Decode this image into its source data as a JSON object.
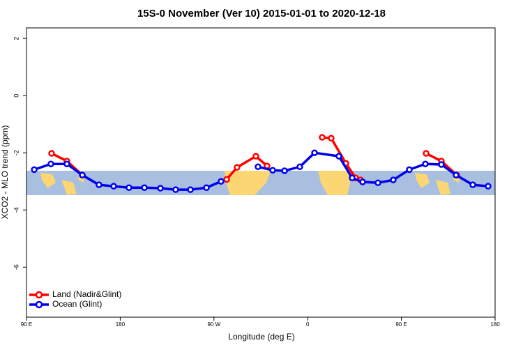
{
  "chart_data": {
    "type": "line",
    "title": "15S-0 November (Ver 10)   2015-01-01 to 2020-12-18",
    "x_label": "Longitude (deg E)",
    "y_label": "XCO2 - MLO trend (ppm)",
    "xlim": [
      90,
      540
    ],
    "xticks": [
      {
        "value": 90,
        "label": "90 E"
      },
      180,
      {
        "value": 270,
        "label": "90 W"
      },
      {
        "value": 360,
        "label": "0"
      },
      {
        "value": 450,
        "label": "90 E"
      },
      {
        "value": 540,
        "label": "180"
      }
    ],
    "ylim": [
      -7.75,
      2.37
    ],
    "yticks": [
      2,
      0,
      -2,
      -4,
      -6
    ],
    "legend": "bottom-left",
    "series": [
      {
        "name": "Land (Nadir&Glint)",
        "color": "#ff0000",
        "x": [
          114.1,
          128.8,
          143.6,
          213,
          282.2,
          292.2,
          310.3,
          321.0,
          347.5,
          373.9,
          382.6,
          396.7,
          406.1,
          410.8,
          442,
          473.7,
          488.4,
          503.2
        ],
        "values": [
          -2.02,
          -2.29,
          -2.78,
          null,
          -2.93,
          -2.51,
          -2.12,
          -2.46,
          null,
          -1.46,
          -1.49,
          -2.37,
          -2.88,
          -2.95,
          null,
          -2.02,
          -2.29,
          -2.78
        ]
      },
      {
        "name": "Ocean (Glint)",
        "color": "#0000ee",
        "x": [
          97.4,
          113.4,
          128.8,
          143.6,
          159.6,
          173.7,
          188.4,
          203.2,
          218.6,
          233.3,
          247.4,
          262.8,
          276.8,
          294.5,
          312.3,
          326.4,
          337.8,
          352.5,
          366.6,
          390.0,
          402.7,
          412.8,
          427.5,
          442.2,
          457.6,
          473.0,
          488.4,
          502.5,
          518.6,
          533.3
        ],
        "values": [
          -2.59,
          -2.39,
          -2.39,
          -2.78,
          -3.12,
          -3.17,
          -3.22,
          -3.22,
          -3.24,
          -3.29,
          -3.29,
          -3.22,
          -3.0,
          null,
          -2.49,
          -2.61,
          -2.63,
          -2.49,
          -2.0,
          -2.12,
          -2.88,
          -3.02,
          -3.05,
          -2.95,
          -2.59,
          -2.39,
          -2.41,
          -2.78,
          -3.12,
          -3.17
        ]
      }
    ]
  }
}
